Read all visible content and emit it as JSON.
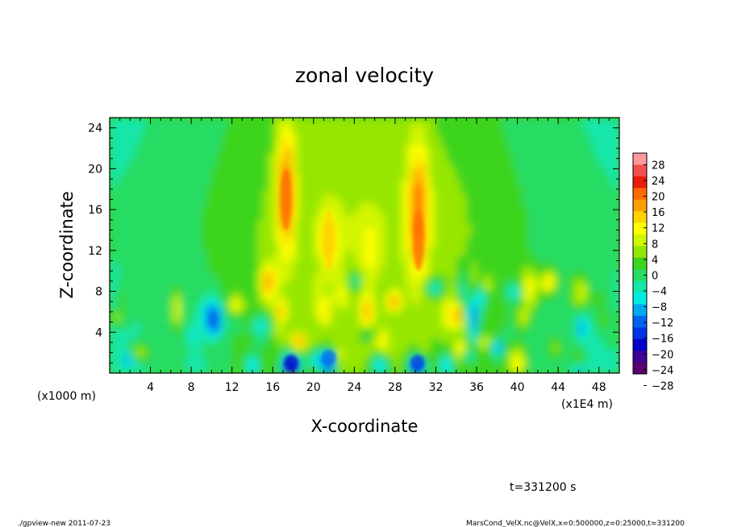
{
  "chart_data": {
    "type": "heatmap",
    "title": "zonal velocity",
    "xlabel": "X-coordinate",
    "ylabel": "Z-coordinate",
    "x_unit_note": "(x1E4 m)",
    "y_unit_note": "(x1000 m)",
    "xlim": [
      0,
      50
    ],
    "ylim": [
      0,
      25
    ],
    "x_ticks": [
      4,
      8,
      12,
      16,
      20,
      24,
      28,
      32,
      36,
      40,
      44,
      48
    ],
    "y_ticks": [
      4,
      8,
      12,
      16,
      20,
      24
    ],
    "colorbar": {
      "levels": [
        28,
        24,
        20,
        16,
        12,
        8,
        4,
        0,
        -4,
        -8,
        -12,
        -16,
        -20,
        -24,
        -28
      ],
      "colors": [
        "#ff9a9a",
        "#f05050",
        "#e81e0a",
        "#ff6a00",
        "#ff9e00",
        "#ffd200",
        "#ffff00",
        "#d2f500",
        "#96e600",
        "#3cd41e",
        "#28dc64",
        "#14e6aa",
        "#00ebe6",
        "#00aaf0",
        "#0064f0",
        "#0032e6",
        "#0000c8",
        "#3c0096",
        "#5a006e"
      ],
      "max": 28,
      "min": -28
    },
    "features": [
      {
        "x": 17.3,
        "z": 17,
        "value": 18
      },
      {
        "x": 21.5,
        "z": 13,
        "value": 13
      },
      {
        "x": 30.3,
        "z": 13,
        "value": 17
      },
      {
        "x": 17.8,
        "z": 1,
        "value": -20
      },
      {
        "x": 21.5,
        "z": 1.5,
        "value": -16
      },
      {
        "x": 30.2,
        "z": 1,
        "value": -18
      }
    ]
  },
  "annotations": {
    "time": "t=331200 s",
    "footer_left": "./gpview-new  2011-07-23",
    "footer_right": "MarsCond_VelX.nc@VelX,x=0:500000,z=0:25000,t=331200"
  }
}
